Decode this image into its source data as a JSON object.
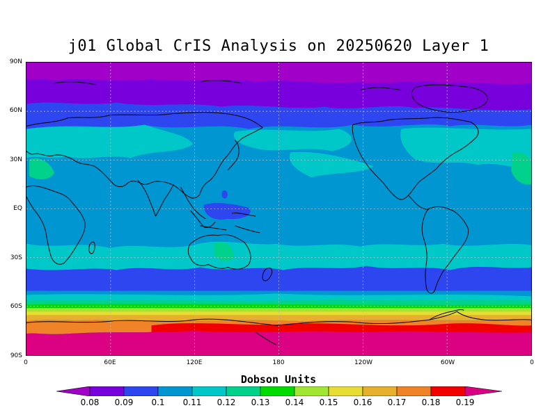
{
  "title": "j01 Global CrIS Analysis on 20250620 Layer 1",
  "units_label": "Dobson Units",
  "y_ticks": [
    "90N",
    "60N",
    "30N",
    "EQ",
    "30S",
    "60S",
    "90S"
  ],
  "x_ticks": [
    "0",
    "60E",
    "120E",
    "180",
    "120W",
    "60W",
    "0"
  ],
  "colorbar": {
    "levels": [
      "0.08",
      "0.09",
      "0.1",
      "0.11",
      "0.12",
      "0.13",
      "0.14",
      "0.15",
      "0.16",
      "0.17",
      "0.18",
      "0.19"
    ],
    "colors": [
      "#a000c8",
      "#7800dc",
      "#2e46f0",
      "#0096d2",
      "#00c8c8",
      "#00d28c",
      "#00dc00",
      "#a0e632",
      "#e6dc32",
      "#e6af2d",
      "#f08228",
      "#f00000",
      "#dc0082"
    ]
  },
  "map": {
    "projection": "equirectangular",
    "lon_range": [
      0,
      360
    ],
    "lat_range": [
      -90,
      90
    ],
    "grid": "dotted",
    "ocean_color": "#0096d2"
  }
}
